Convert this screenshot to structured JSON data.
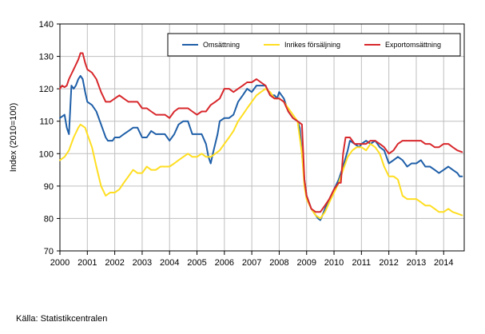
{
  "chart_data": {
    "type": "line",
    "ylabel": "Index (2010=100)",
    "ylim": [
      70,
      140
    ],
    "yticks": [
      70,
      80,
      90,
      100,
      110,
      120,
      130,
      140
    ],
    "xlim": [
      2000.0,
      2014.75
    ],
    "xticks": [
      "2000",
      "2001",
      "2002",
      "2003",
      "2004",
      "2005",
      "2006",
      "2007",
      "2008",
      "2009",
      "2010",
      "2011",
      "2012",
      "2013",
      "2014"
    ],
    "grid": true,
    "legend_position": "top-right",
    "series": [
      {
        "name": "Omsättning",
        "color": "#1f5fa8",
        "points": [
          [
            2000.0,
            111
          ],
          [
            2000.17,
            112
          ],
          [
            2000.25,
            108
          ],
          [
            2000.33,
            106
          ],
          [
            2000.42,
            121
          ],
          [
            2000.5,
            120
          ],
          [
            2000.58,
            121
          ],
          [
            2000.67,
            123
          ],
          [
            2000.75,
            124
          ],
          [
            2000.83,
            123
          ],
          [
            2000.92,
            119
          ],
          [
            2001.0,
            116
          ],
          [
            2001.17,
            115
          ],
          [
            2001.33,
            113
          ],
          [
            2001.5,
            109
          ],
          [
            2001.67,
            105
          ],
          [
            2001.75,
            104
          ],
          [
            2001.92,
            104
          ],
          [
            2002.0,
            105
          ],
          [
            2002.17,
            105
          ],
          [
            2002.33,
            106
          ],
          [
            2002.5,
            107
          ],
          [
            2002.67,
            108
          ],
          [
            2002.83,
            108
          ],
          [
            2003.0,
            105
          ],
          [
            2003.17,
            105
          ],
          [
            2003.33,
            107
          ],
          [
            2003.5,
            106
          ],
          [
            2003.67,
            106
          ],
          [
            2003.83,
            106
          ],
          [
            2004.0,
            104
          ],
          [
            2004.17,
            106
          ],
          [
            2004.33,
            109
          ],
          [
            2004.5,
            110
          ],
          [
            2004.67,
            110
          ],
          [
            2004.83,
            106
          ],
          [
            2005.0,
            106
          ],
          [
            2005.17,
            106
          ],
          [
            2005.33,
            103
          ],
          [
            2005.42,
            99
          ],
          [
            2005.5,
            97
          ],
          [
            2005.58,
            100
          ],
          [
            2005.75,
            106
          ],
          [
            2005.83,
            110
          ],
          [
            2006.0,
            111
          ],
          [
            2006.17,
            111
          ],
          [
            2006.33,
            112
          ],
          [
            2006.5,
            116
          ],
          [
            2006.67,
            118
          ],
          [
            2006.83,
            120
          ],
          [
            2007.0,
            119
          ],
          [
            2007.17,
            121
          ],
          [
            2007.33,
            121
          ],
          [
            2007.5,
            121
          ],
          [
            2007.67,
            118
          ],
          [
            2007.83,
            118
          ],
          [
            2007.92,
            117
          ],
          [
            2008.0,
            119
          ],
          [
            2008.17,
            117
          ],
          [
            2008.33,
            113
          ],
          [
            2008.5,
            111
          ],
          [
            2008.67,
            110
          ],
          [
            2008.75,
            108
          ],
          [
            2008.83,
            100
          ],
          [
            2008.92,
            92
          ],
          [
            2009.0,
            87
          ],
          [
            2009.17,
            83
          ],
          [
            2009.33,
            81
          ],
          [
            2009.42,
            80
          ],
          [
            2009.5,
            79.5
          ],
          [
            2009.58,
            81
          ],
          [
            2009.67,
            83
          ],
          [
            2009.83,
            86
          ],
          [
            2010.0,
            89
          ],
          [
            2010.17,
            92
          ],
          [
            2010.33,
            96
          ],
          [
            2010.5,
            101
          ],
          [
            2010.58,
            104
          ],
          [
            2010.75,
            103
          ],
          [
            2010.92,
            102
          ],
          [
            2011.0,
            103
          ],
          [
            2011.17,
            104
          ],
          [
            2011.33,
            103
          ],
          [
            2011.5,
            104
          ],
          [
            2011.67,
            102
          ],
          [
            2011.83,
            101
          ],
          [
            2012.0,
            97
          ],
          [
            2012.17,
            98
          ],
          [
            2012.33,
            99
          ],
          [
            2012.5,
            98
          ],
          [
            2012.67,
            96
          ],
          [
            2012.83,
            97
          ],
          [
            2013.0,
            97
          ],
          [
            2013.17,
            98
          ],
          [
            2013.33,
            96
          ],
          [
            2013.5,
            96
          ],
          [
            2013.67,
            95
          ],
          [
            2013.83,
            94
          ],
          [
            2014.0,
            95
          ],
          [
            2014.17,
            96
          ],
          [
            2014.33,
            95
          ],
          [
            2014.5,
            94
          ],
          [
            2014.58,
            93
          ],
          [
            2014.67,
            93
          ]
        ]
      },
      {
        "name": "Inrikes försäljning",
        "color": "#ffde21",
        "points": [
          [
            2000.0,
            98
          ],
          [
            2000.17,
            99
          ],
          [
            2000.33,
            101
          ],
          [
            2000.5,
            105
          ],
          [
            2000.67,
            108
          ],
          [
            2000.75,
            109
          ],
          [
            2000.92,
            108
          ],
          [
            2001.0,
            106
          ],
          [
            2001.17,
            102
          ],
          [
            2001.33,
            96
          ],
          [
            2001.5,
            90
          ],
          [
            2001.67,
            87
          ],
          [
            2001.83,
            88
          ],
          [
            2002.0,
            88
          ],
          [
            2002.17,
            89
          ],
          [
            2002.33,
            91
          ],
          [
            2002.5,
            93
          ],
          [
            2002.67,
            95
          ],
          [
            2002.83,
            94
          ],
          [
            2003.0,
            94
          ],
          [
            2003.17,
            96
          ],
          [
            2003.33,
            95
          ],
          [
            2003.5,
            95
          ],
          [
            2003.67,
            96
          ],
          [
            2003.83,
            96
          ],
          [
            2004.0,
            96
          ],
          [
            2004.17,
            97
          ],
          [
            2004.33,
            98
          ],
          [
            2004.5,
            99
          ],
          [
            2004.67,
            100
          ],
          [
            2004.83,
            99
          ],
          [
            2005.0,
            99
          ],
          [
            2005.17,
            100
          ],
          [
            2005.33,
            99
          ],
          [
            2005.5,
            99
          ],
          [
            2005.67,
            100
          ],
          [
            2005.83,
            101
          ],
          [
            2006.0,
            103
          ],
          [
            2006.17,
            105
          ],
          [
            2006.33,
            107
          ],
          [
            2006.5,
            110
          ],
          [
            2006.67,
            112
          ],
          [
            2006.83,
            114
          ],
          [
            2007.0,
            116
          ],
          [
            2007.17,
            118
          ],
          [
            2007.33,
            119
          ],
          [
            2007.5,
            120
          ],
          [
            2007.67,
            119
          ],
          [
            2007.83,
            117
          ],
          [
            2008.0,
            117
          ],
          [
            2008.17,
            116
          ],
          [
            2008.33,
            114
          ],
          [
            2008.5,
            112
          ],
          [
            2008.67,
            110
          ],
          [
            2008.83,
            100
          ],
          [
            2008.92,
            90
          ],
          [
            2009.0,
            86
          ],
          [
            2009.17,
            83
          ],
          [
            2009.33,
            81
          ],
          [
            2009.5,
            80
          ],
          [
            2009.67,
            82
          ],
          [
            2009.83,
            85
          ],
          [
            2010.0,
            88
          ],
          [
            2010.17,
            91
          ],
          [
            2010.33,
            95
          ],
          [
            2010.5,
            99
          ],
          [
            2010.67,
            101
          ],
          [
            2010.83,
            102
          ],
          [
            2011.0,
            102
          ],
          [
            2011.17,
            101
          ],
          [
            2011.33,
            103
          ],
          [
            2011.5,
            102
          ],
          [
            2011.67,
            100
          ],
          [
            2011.83,
            96
          ],
          [
            2012.0,
            93
          ],
          [
            2012.17,
            93
          ],
          [
            2012.33,
            92
          ],
          [
            2012.5,
            87
          ],
          [
            2012.67,
            86
          ],
          [
            2012.83,
            86
          ],
          [
            2013.0,
            86
          ],
          [
            2013.17,
            85
          ],
          [
            2013.33,
            84
          ],
          [
            2013.5,
            84
          ],
          [
            2013.67,
            83
          ],
          [
            2013.83,
            82
          ],
          [
            2014.0,
            82
          ],
          [
            2014.17,
            83
          ],
          [
            2014.33,
            82
          ],
          [
            2014.5,
            81.5
          ],
          [
            2014.67,
            81
          ]
        ]
      },
      {
        "name": "Exportomsättning",
        "color": "#d8282c",
        "points": [
          [
            2000.0,
            120
          ],
          [
            2000.08,
            121
          ],
          [
            2000.17,
            120.5
          ],
          [
            2000.25,
            121
          ],
          [
            2000.33,
            123
          ],
          [
            2000.5,
            126
          ],
          [
            2000.67,
            129
          ],
          [
            2000.75,
            131
          ],
          [
            2000.83,
            131
          ],
          [
            2000.92,
            128
          ],
          [
            2001.0,
            126
          ],
          [
            2001.17,
            125
          ],
          [
            2001.33,
            123
          ],
          [
            2001.5,
            119
          ],
          [
            2001.67,
            116
          ],
          [
            2001.83,
            116
          ],
          [
            2002.0,
            117
          ],
          [
            2002.17,
            118
          ],
          [
            2002.33,
            117
          ],
          [
            2002.5,
            116
          ],
          [
            2002.67,
            116
          ],
          [
            2002.83,
            116
          ],
          [
            2003.0,
            114
          ],
          [
            2003.17,
            114
          ],
          [
            2003.33,
            113
          ],
          [
            2003.5,
            112
          ],
          [
            2003.67,
            112
          ],
          [
            2003.83,
            112
          ],
          [
            2004.0,
            111
          ],
          [
            2004.17,
            113
          ],
          [
            2004.33,
            114
          ],
          [
            2004.5,
            114
          ],
          [
            2004.67,
            114
          ],
          [
            2004.83,
            113
          ],
          [
            2005.0,
            112
          ],
          [
            2005.17,
            113
          ],
          [
            2005.33,
            113
          ],
          [
            2005.5,
            115
          ],
          [
            2005.67,
            116
          ],
          [
            2005.83,
            117
          ],
          [
            2006.0,
            120
          ],
          [
            2006.17,
            120
          ],
          [
            2006.33,
            119
          ],
          [
            2006.5,
            120
          ],
          [
            2006.67,
            121
          ],
          [
            2006.83,
            122
          ],
          [
            2007.0,
            122
          ],
          [
            2007.17,
            123
          ],
          [
            2007.33,
            122
          ],
          [
            2007.5,
            121
          ],
          [
            2007.67,
            118
          ],
          [
            2007.83,
            117
          ],
          [
            2008.0,
            117
          ],
          [
            2008.17,
            116
          ],
          [
            2008.33,
            113
          ],
          [
            2008.5,
            111
          ],
          [
            2008.67,
            110
          ],
          [
            2008.83,
            109
          ],
          [
            2008.92,
            92
          ],
          [
            2009.0,
            87
          ],
          [
            2009.17,
            83
          ],
          [
            2009.33,
            82
          ],
          [
            2009.5,
            82
          ],
          [
            2009.67,
            84
          ],
          [
            2009.83,
            86
          ],
          [
            2010.0,
            89
          ],
          [
            2010.17,
            91
          ],
          [
            2010.25,
            91
          ],
          [
            2010.33,
            100
          ],
          [
            2010.42,
            105
          ],
          [
            2010.58,
            105
          ],
          [
            2010.75,
            103
          ],
          [
            2010.92,
            103
          ],
          [
            2011.0,
            103
          ],
          [
            2011.17,
            103
          ],
          [
            2011.33,
            104
          ],
          [
            2011.5,
            104
          ],
          [
            2011.67,
            103
          ],
          [
            2011.83,
            102
          ],
          [
            2012.0,
            100
          ],
          [
            2012.17,
            101
          ],
          [
            2012.33,
            103
          ],
          [
            2012.5,
            104
          ],
          [
            2012.67,
            104
          ],
          [
            2012.83,
            104
          ],
          [
            2013.0,
            104
          ],
          [
            2013.17,
            104
          ],
          [
            2013.33,
            103
          ],
          [
            2013.5,
            103
          ],
          [
            2013.67,
            102
          ],
          [
            2013.83,
            102
          ],
          [
            2014.0,
            103
          ],
          [
            2014.17,
            103
          ],
          [
            2014.33,
            102
          ],
          [
            2014.5,
            101
          ],
          [
            2014.67,
            100.5
          ]
        ]
      }
    ]
  },
  "source": "Källa: Statistikcentralen"
}
